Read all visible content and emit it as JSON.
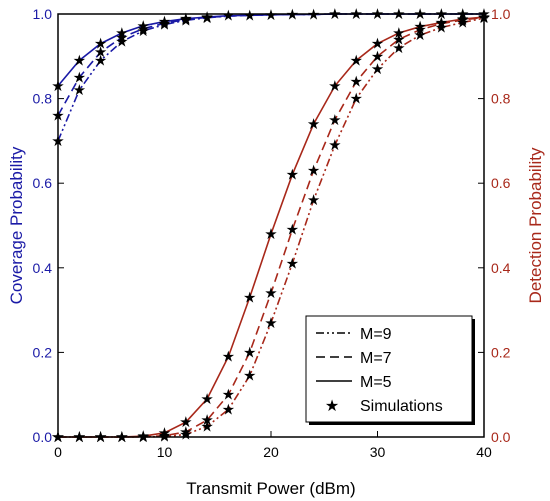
{
  "chart_data": {
    "type": "line",
    "xlabel": "Transmit Power (dBm)",
    "ylabel_left": "Coverage Probability",
    "ylabel_right": "Detection Probability",
    "xlim": [
      0,
      40
    ],
    "ylim_left": [
      0,
      1
    ],
    "ylim_right": [
      0,
      1
    ],
    "x_ticks": [
      "0",
      "10",
      "20",
      "30",
      "40"
    ],
    "y_ticks_left": [
      "0.0",
      "0.2",
      "0.4",
      "0.6",
      "0.8",
      "1.0"
    ],
    "y_ticks_right": [
      "0.0",
      "0.2",
      "0.4",
      "0.6",
      "0.8",
      "1.0"
    ],
    "grid": false,
    "legend_position": "bottom-right",
    "colors": {
      "coverage": "#1a1aa6",
      "detection": "#a8281a",
      "axis": "#000000"
    },
    "legend": [
      {
        "label": "M=9",
        "style": "dashdotdot"
      },
      {
        "label": "M=7",
        "style": "dashed"
      },
      {
        "label": "M=5",
        "style": "solid"
      },
      {
        "label": "Simulations",
        "style": "star"
      }
    ],
    "series": [
      {
        "group": "coverage",
        "legend": "M=5",
        "style": "solid",
        "x": [
          0,
          2,
          4,
          6,
          8,
          10,
          12,
          14,
          16,
          18,
          20,
          22,
          24,
          26,
          28,
          30,
          32,
          34,
          36,
          38,
          40
        ],
        "y": [
          0.83,
          0.89,
          0.93,
          0.955,
          0.972,
          0.982,
          0.989,
          0.993,
          0.996,
          0.997,
          0.998,
          0.999,
          0.999,
          1.0,
          1.0,
          1.0,
          1.0,
          1.0,
          1.0,
          1.0,
          1.0
        ]
      },
      {
        "group": "coverage",
        "legend": "M=7",
        "style": "dashed",
        "x": [
          0,
          2,
          4,
          6,
          8,
          10,
          12,
          14,
          16,
          18,
          20,
          22,
          24,
          26,
          28,
          30,
          32,
          34,
          36,
          38,
          40
        ],
        "y": [
          0.76,
          0.85,
          0.91,
          0.945,
          0.965,
          0.978,
          0.987,
          0.992,
          0.995,
          0.997,
          0.998,
          0.999,
          0.999,
          1.0,
          1.0,
          1.0,
          1.0,
          1.0,
          1.0,
          1.0,
          1.0
        ]
      },
      {
        "group": "coverage",
        "legend": "M=9",
        "style": "dashdotdot",
        "x": [
          0,
          2,
          4,
          6,
          8,
          10,
          12,
          14,
          16,
          18,
          20,
          22,
          24,
          26,
          28,
          30,
          32,
          34,
          36,
          38,
          40
        ],
        "y": [
          0.7,
          0.82,
          0.89,
          0.935,
          0.96,
          0.975,
          0.985,
          0.991,
          0.995,
          0.997,
          0.998,
          0.999,
          0.999,
          1.0,
          1.0,
          1.0,
          1.0,
          1.0,
          1.0,
          1.0,
          1.0
        ]
      },
      {
        "group": "detection",
        "legend": "M=5",
        "style": "solid",
        "x": [
          0,
          2,
          4,
          6,
          8,
          10,
          12,
          14,
          16,
          18,
          20,
          22,
          24,
          26,
          28,
          30,
          32,
          34,
          36,
          38,
          40
        ],
        "y": [
          0.0,
          0.0,
          0.0,
          0.0,
          0.002,
          0.01,
          0.035,
          0.09,
          0.19,
          0.33,
          0.48,
          0.62,
          0.74,
          0.83,
          0.89,
          0.93,
          0.955,
          0.97,
          0.98,
          0.988,
          0.993
        ]
      },
      {
        "group": "detection",
        "legend": "M=7",
        "style": "dashed",
        "x": [
          0,
          2,
          4,
          6,
          8,
          10,
          12,
          14,
          16,
          18,
          20,
          22,
          24,
          26,
          28,
          30,
          32,
          34,
          36,
          38,
          40
        ],
        "y": [
          0.0,
          0.0,
          0.0,
          0.0,
          0.0,
          0.003,
          0.012,
          0.04,
          0.1,
          0.2,
          0.34,
          0.49,
          0.63,
          0.75,
          0.84,
          0.9,
          0.94,
          0.963,
          0.977,
          0.986,
          0.992
        ]
      },
      {
        "group": "detection",
        "legend": "M=9",
        "style": "dashdotdot",
        "x": [
          0,
          2,
          4,
          6,
          8,
          10,
          12,
          14,
          16,
          18,
          20,
          22,
          24,
          26,
          28,
          30,
          32,
          34,
          36,
          38,
          40
        ],
        "y": [
          0.0,
          0.0,
          0.0,
          0.0,
          0.0,
          0.001,
          0.006,
          0.025,
          0.065,
          0.145,
          0.27,
          0.41,
          0.56,
          0.69,
          0.8,
          0.87,
          0.92,
          0.95,
          0.968,
          0.98,
          0.99
        ]
      }
    ],
    "simulations": [
      {
        "group": "coverage",
        "x": [
          0,
          2,
          4,
          6,
          8,
          10,
          12,
          14,
          16,
          18,
          20,
          22,
          24,
          26,
          28,
          30,
          32,
          34,
          36,
          38,
          40
        ],
        "y": [
          0.83,
          0.89,
          0.93,
          0.955,
          0.972,
          0.982,
          0.989,
          0.993,
          0.996,
          0.997,
          0.998,
          0.999,
          0.999,
          1.0,
          1.0,
          1.0,
          1.0,
          1.0,
          1.0,
          1.0,
          1.0
        ]
      },
      {
        "group": "coverage",
        "x": [
          0,
          2,
          4,
          6,
          8,
          10,
          12,
          14
        ],
        "y": [
          0.76,
          0.85,
          0.91,
          0.945,
          0.965,
          0.978,
          0.987,
          0.992
        ]
      },
      {
        "group": "coverage",
        "x": [
          0,
          2,
          4,
          6,
          8,
          10,
          12,
          14
        ],
        "y": [
          0.7,
          0.82,
          0.89,
          0.935,
          0.96,
          0.975,
          0.985,
          0.991
        ]
      },
      {
        "group": "detection",
        "x": [
          0,
          2,
          4,
          6,
          8,
          10,
          12,
          14,
          16,
          18,
          20,
          22,
          24,
          26,
          28,
          30,
          32,
          34,
          36,
          38,
          40
        ],
        "y": [
          0.0,
          0.0,
          0.0,
          0.0,
          0.002,
          0.01,
          0.035,
          0.09,
          0.19,
          0.33,
          0.48,
          0.62,
          0.74,
          0.83,
          0.89,
          0.93,
          0.955,
          0.97,
          0.98,
          0.988,
          0.993
        ]
      },
      {
        "group": "detection",
        "x": [
          0,
          2,
          4,
          6,
          8,
          10,
          12,
          14,
          16,
          18,
          20,
          22,
          24,
          26,
          28,
          30,
          32,
          34,
          36,
          38,
          40
        ],
        "y": [
          0.0,
          0.0,
          0.0,
          0.0,
          0.0,
          0.003,
          0.012,
          0.04,
          0.1,
          0.2,
          0.34,
          0.49,
          0.63,
          0.75,
          0.84,
          0.9,
          0.94,
          0.963,
          0.977,
          0.986,
          0.992
        ]
      },
      {
        "group": "detection",
        "x": [
          0,
          2,
          4,
          6,
          8,
          10,
          12,
          14,
          16,
          18,
          20,
          22,
          24,
          26,
          28,
          30,
          32,
          34,
          36,
          38,
          40
        ],
        "y": [
          0.0,
          0.0,
          0.0,
          0.0,
          0.0,
          0.001,
          0.006,
          0.025,
          0.065,
          0.145,
          0.27,
          0.41,
          0.56,
          0.69,
          0.8,
          0.87,
          0.92,
          0.95,
          0.968,
          0.98,
          0.99
        ]
      }
    ]
  }
}
